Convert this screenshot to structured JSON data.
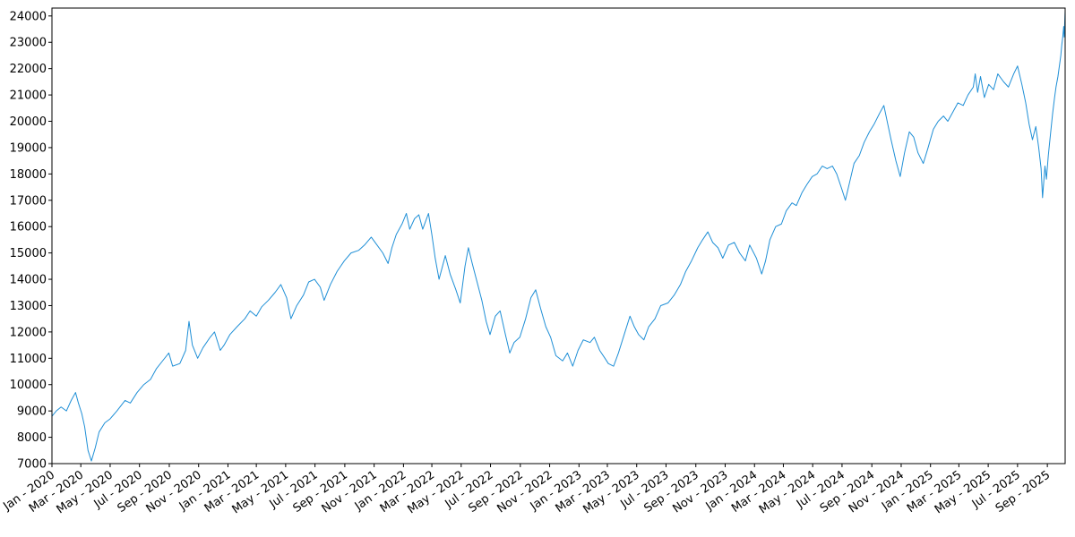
{
  "chart_data": {
    "type": "line",
    "title": "",
    "xlabel": "",
    "ylabel": "",
    "grid": false,
    "legend": "none",
    "xlim": [
      "2020-01-01",
      "2025-10-08"
    ],
    "ylim": [
      7000,
      24300
    ],
    "yticks": [
      7000,
      8000,
      9000,
      10000,
      11000,
      12000,
      13000,
      14000,
      15000,
      16000,
      17000,
      18000,
      19000,
      20000,
      21000,
      22000,
      23000,
      24000
    ],
    "xticks": [
      {
        "date": "2020-01-01",
        "label": "Jan - 2020"
      },
      {
        "date": "2020-03-01",
        "label": "Mar - 2020"
      },
      {
        "date": "2020-05-01",
        "label": "May - 2020"
      },
      {
        "date": "2020-07-01",
        "label": "Jul - 2020"
      },
      {
        "date": "2020-09-01",
        "label": "Sep - 2020"
      },
      {
        "date": "2020-11-01",
        "label": "Nov - 2020"
      },
      {
        "date": "2021-01-01",
        "label": "Jan - 2021"
      },
      {
        "date": "2021-03-01",
        "label": "Mar - 2021"
      },
      {
        "date": "2021-05-01",
        "label": "May - 2021"
      },
      {
        "date": "2021-07-01",
        "label": "Jul - 2021"
      },
      {
        "date": "2021-09-01",
        "label": "Sep - 2021"
      },
      {
        "date": "2021-11-01",
        "label": "Nov - 2021"
      },
      {
        "date": "2022-01-01",
        "label": "Jan - 2022"
      },
      {
        "date": "2022-03-01",
        "label": "Mar - 2022"
      },
      {
        "date": "2022-05-01",
        "label": "May - 2022"
      },
      {
        "date": "2022-07-01",
        "label": "Jul - 2022"
      },
      {
        "date": "2022-09-01",
        "label": "Sep - 2022"
      },
      {
        "date": "2022-11-01",
        "label": "Nov - 2022"
      },
      {
        "date": "2023-01-01",
        "label": "Jan - 2023"
      },
      {
        "date": "2023-03-01",
        "label": "Mar - 2023"
      },
      {
        "date": "2023-05-01",
        "label": "May - 2023"
      },
      {
        "date": "2023-07-01",
        "label": "Jul - 2023"
      },
      {
        "date": "2023-09-01",
        "label": "Sep - 2023"
      },
      {
        "date": "2023-11-01",
        "label": "Nov - 2023"
      },
      {
        "date": "2024-01-01",
        "label": "Jan - 2024"
      },
      {
        "date": "2024-03-01",
        "label": "Mar - 2024"
      },
      {
        "date": "2024-05-01",
        "label": "May - 2024"
      },
      {
        "date": "2024-07-01",
        "label": "Jul - 2024"
      },
      {
        "date": "2024-09-01",
        "label": "Sep - 2024"
      },
      {
        "date": "2024-11-01",
        "label": "Nov - 2024"
      },
      {
        "date": "2025-01-01",
        "label": "Jan - 2025"
      },
      {
        "date": "2025-03-01",
        "label": "Mar - 2025"
      },
      {
        "date": "2025-05-01",
        "label": "May - 2025"
      },
      {
        "date": "2025-07-01",
        "label": "Jul - 2025"
      },
      {
        "date": "2025-09-01",
        "label": "Sep - 2025"
      }
    ],
    "series": [
      {
        "color": "#1f8fd6",
        "points": [
          [
            "2020-01-01",
            8800
          ],
          [
            "2020-01-10",
            9000
          ],
          [
            "2020-01-20",
            9150
          ],
          [
            "2020-01-31",
            9000
          ],
          [
            "2020-02-10",
            9400
          ],
          [
            "2020-02-19",
            9700
          ],
          [
            "2020-02-25",
            9300
          ],
          [
            "2020-03-03",
            8900
          ],
          [
            "2020-03-09",
            8400
          ],
          [
            "2020-03-16",
            7500
          ],
          [
            "2020-03-23",
            7100
          ],
          [
            "2020-03-31",
            7600
          ],
          [
            "2020-04-08",
            8200
          ],
          [
            "2020-04-20",
            8550
          ],
          [
            "2020-05-01",
            8700
          ],
          [
            "2020-05-15",
            9000
          ],
          [
            "2020-06-01",
            9400
          ],
          [
            "2020-06-12",
            9300
          ],
          [
            "2020-06-26",
            9700
          ],
          [
            "2020-07-10",
            10000
          ],
          [
            "2020-07-24",
            10200
          ],
          [
            "2020-08-05",
            10600
          ],
          [
            "2020-08-18",
            10900
          ],
          [
            "2020-08-31",
            11200
          ],
          [
            "2020-09-08",
            10700
          ],
          [
            "2020-09-23",
            10800
          ],
          [
            "2020-10-05",
            11300
          ],
          [
            "2020-10-12",
            12400
          ],
          [
            "2020-10-19",
            11500
          ],
          [
            "2020-10-30",
            11000
          ],
          [
            "2020-11-10",
            11400
          ],
          [
            "2020-11-25",
            11800
          ],
          [
            "2020-12-04",
            12000
          ],
          [
            "2020-12-16",
            11300
          ],
          [
            "2020-12-24",
            11500
          ],
          [
            "2021-01-05",
            11900
          ],
          [
            "2021-01-20",
            12200
          ],
          [
            "2021-02-05",
            12500
          ],
          [
            "2021-02-16",
            12800
          ],
          [
            "2021-03-01",
            12600
          ],
          [
            "2021-03-12",
            12950
          ],
          [
            "2021-03-26",
            13200
          ],
          [
            "2021-04-09",
            13500
          ],
          [
            "2021-04-21",
            13800
          ],
          [
            "2021-05-03",
            13300
          ],
          [
            "2021-05-12",
            12500
          ],
          [
            "2021-05-24",
            13000
          ],
          [
            "2021-06-07",
            13400
          ],
          [
            "2021-06-18",
            13900
          ],
          [
            "2021-06-30",
            14000
          ],
          [
            "2021-07-12",
            13700
          ],
          [
            "2021-07-20",
            13200
          ],
          [
            "2021-08-02",
            13800
          ],
          [
            "2021-08-16",
            14300
          ],
          [
            "2021-08-31",
            14700
          ],
          [
            "2021-09-14",
            15000
          ],
          [
            "2021-09-30",
            15100
          ],
          [
            "2021-10-12",
            15300
          ],
          [
            "2021-10-26",
            15600
          ],
          [
            "2021-11-05",
            15350
          ],
          [
            "2021-11-19",
            15000
          ],
          [
            "2021-11-30",
            14600
          ],
          [
            "2021-12-08",
            15200
          ],
          [
            "2021-12-17",
            15700
          ],
          [
            "2021-12-29",
            16100
          ],
          [
            "2022-01-07",
            16500
          ],
          [
            "2022-01-14",
            15900
          ],
          [
            "2022-01-24",
            16300
          ],
          [
            "2022-02-02",
            16450
          ],
          [
            "2022-02-10",
            15900
          ],
          [
            "2022-02-22",
            16500
          ],
          [
            "2022-03-01",
            15700
          ],
          [
            "2022-03-08",
            14800
          ],
          [
            "2022-03-16",
            14000
          ],
          [
            "2022-03-29",
            14900
          ],
          [
            "2022-04-08",
            14200
          ],
          [
            "2022-04-20",
            13600
          ],
          [
            "2022-04-29",
            13100
          ],
          [
            "2022-05-09",
            14500
          ],
          [
            "2022-05-16",
            15200
          ],
          [
            "2022-05-24",
            14600
          ],
          [
            "2022-06-03",
            13900
          ],
          [
            "2022-06-13",
            13200
          ],
          [
            "2022-06-22",
            12400
          ],
          [
            "2022-06-30",
            11900
          ],
          [
            "2022-07-11",
            12600
          ],
          [
            "2022-07-21",
            12800
          ],
          [
            "2022-08-01",
            11900
          ],
          [
            "2022-08-10",
            11200
          ],
          [
            "2022-08-19",
            11600
          ],
          [
            "2022-08-31",
            11800
          ],
          [
            "2022-09-12",
            12500
          ],
          [
            "2022-09-23",
            13300
          ],
          [
            "2022-10-03",
            13600
          ],
          [
            "2022-10-13",
            12900
          ],
          [
            "2022-10-24",
            12200
          ],
          [
            "2022-11-03",
            11800
          ],
          [
            "2022-11-14",
            11100
          ],
          [
            "2022-11-28",
            10900
          ],
          [
            "2022-12-08",
            11200
          ],
          [
            "2022-12-19",
            10700
          ],
          [
            "2022-12-30",
            11300
          ],
          [
            "2023-01-10",
            11700
          ],
          [
            "2023-01-24",
            11600
          ],
          [
            "2023-02-02",
            11800
          ],
          [
            "2023-02-13",
            11300
          ],
          [
            "2023-02-24",
            11000
          ],
          [
            "2023-03-03",
            10800
          ],
          [
            "2023-03-14",
            10700
          ],
          [
            "2023-03-24",
            11200
          ],
          [
            "2023-04-05",
            11900
          ],
          [
            "2023-04-17",
            12600
          ],
          [
            "2023-04-26",
            12200
          ],
          [
            "2023-05-05",
            11900
          ],
          [
            "2023-05-16",
            11700
          ],
          [
            "2023-05-26",
            12200
          ],
          [
            "2023-06-08",
            12500
          ],
          [
            "2023-06-20",
            13000
          ],
          [
            "2023-07-05",
            13100
          ],
          [
            "2023-07-18",
            13400
          ],
          [
            "2023-07-31",
            13800
          ],
          [
            "2023-08-11",
            14300
          ],
          [
            "2023-08-23",
            14700
          ],
          [
            "2023-09-05",
            15200
          ],
          [
            "2023-09-15",
            15500
          ],
          [
            "2023-09-26",
            15800
          ],
          [
            "2023-10-06",
            15400
          ],
          [
            "2023-10-17",
            15200
          ],
          [
            "2023-10-27",
            14800
          ],
          [
            "2023-11-08",
            15300
          ],
          [
            "2023-11-20",
            15400
          ],
          [
            "2023-12-01",
            15000
          ],
          [
            "2023-12-13",
            14700
          ],
          [
            "2023-12-22",
            15300
          ],
          [
            "2024-01-05",
            14800
          ],
          [
            "2024-01-16",
            14200
          ],
          [
            "2024-01-24",
            14700
          ],
          [
            "2024-02-02",
            15500
          ],
          [
            "2024-02-14",
            16000
          ],
          [
            "2024-02-26",
            16100
          ],
          [
            "2024-03-07",
            16600
          ],
          [
            "2024-03-19",
            16900
          ],
          [
            "2024-03-28",
            16800
          ],
          [
            "2024-04-09",
            17300
          ],
          [
            "2024-04-19",
            17600
          ],
          [
            "2024-04-30",
            17900
          ],
          [
            "2024-05-10",
            18000
          ],
          [
            "2024-05-21",
            18300
          ],
          [
            "2024-05-31",
            18200
          ],
          [
            "2024-06-11",
            18300
          ],
          [
            "2024-06-20",
            18000
          ],
          [
            "2024-07-01",
            17400
          ],
          [
            "2024-07-08",
            17000
          ],
          [
            "2024-07-17",
            17700
          ],
          [
            "2024-07-26",
            18400
          ],
          [
            "2024-08-06",
            18700
          ],
          [
            "2024-08-16",
            19200
          ],
          [
            "2024-08-27",
            19600
          ],
          [
            "2024-09-06",
            19900
          ],
          [
            "2024-09-17",
            20300
          ],
          [
            "2024-09-26",
            20600
          ],
          [
            "2024-10-04",
            19900
          ],
          [
            "2024-10-11",
            19300
          ],
          [
            "2024-10-21",
            18500
          ],
          [
            "2024-10-30",
            17900
          ],
          [
            "2024-11-08",
            18800
          ],
          [
            "2024-11-18",
            19600
          ],
          [
            "2024-11-27",
            19400
          ],
          [
            "2024-12-06",
            18800
          ],
          [
            "2024-12-17",
            18400
          ],
          [
            "2024-12-27",
            19000
          ],
          [
            "2025-01-07",
            19700
          ],
          [
            "2025-01-17",
            20000
          ],
          [
            "2025-01-28",
            20200
          ],
          [
            "2025-02-06",
            20000
          ],
          [
            "2025-02-18",
            20400
          ],
          [
            "2025-02-27",
            20700
          ],
          [
            "2025-03-10",
            20600
          ],
          [
            "2025-03-20",
            21000
          ],
          [
            "2025-03-31",
            21300
          ],
          [
            "2025-04-04",
            21800
          ],
          [
            "2025-04-09",
            21100
          ],
          [
            "2025-04-15",
            21700
          ],
          [
            "2025-04-23",
            20900
          ],
          [
            "2025-05-02",
            21400
          ],
          [
            "2025-05-12",
            21200
          ],
          [
            "2025-05-21",
            21800
          ],
          [
            "2025-06-02",
            21500
          ],
          [
            "2025-06-12",
            21300
          ],
          [
            "2025-06-23",
            21800
          ],
          [
            "2025-07-01",
            22100
          ],
          [
            "2025-07-10",
            21400
          ],
          [
            "2025-07-18",
            20700
          ],
          [
            "2025-07-25",
            19900
          ],
          [
            "2025-08-01",
            19300
          ],
          [
            "2025-08-08",
            19800
          ],
          [
            "2025-08-14",
            19000
          ],
          [
            "2025-08-19",
            18200
          ],
          [
            "2025-08-22",
            17100
          ],
          [
            "2025-08-27",
            18300
          ],
          [
            "2025-08-30",
            17800
          ],
          [
            "2025-09-03",
            18700
          ],
          [
            "2025-09-08",
            19600
          ],
          [
            "2025-09-12",
            20300
          ],
          [
            "2025-09-16",
            20900
          ],
          [
            "2025-09-19",
            21300
          ],
          [
            "2025-09-23",
            21700
          ],
          [
            "2025-09-26",
            22100
          ],
          [
            "2025-09-29",
            22500
          ],
          [
            "2025-10-01",
            22900
          ],
          [
            "2025-10-03",
            23200
          ],
          [
            "2025-10-05",
            23600
          ],
          [
            "2025-10-06",
            23200
          ],
          [
            "2025-10-07",
            23700
          ],
          [
            "2025-10-08",
            24200
          ]
        ]
      }
    ]
  }
}
